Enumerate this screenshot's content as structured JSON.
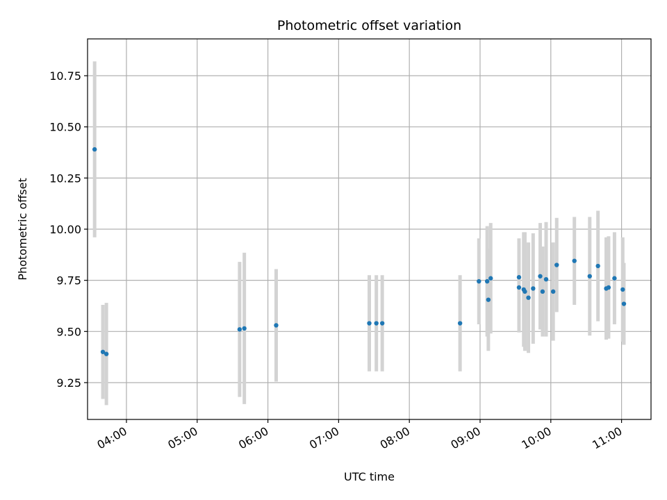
{
  "chart_data": {
    "type": "scatter",
    "title": "Photometric offset variation",
    "xlabel": "UTC time",
    "ylabel": "Photometric offset",
    "grid": true,
    "xlim": [
      "03:27",
      "11:25"
    ],
    "ylim": [
      9.07,
      10.93
    ],
    "x_ticks": [
      "04:00",
      "05:00",
      "06:00",
      "07:00",
      "08:00",
      "09:00",
      "10:00",
      "11:00"
    ],
    "y_ticks": [
      "9.25",
      "9.50",
      "9.75",
      "10.00",
      "10.25",
      "10.50",
      "10.75"
    ],
    "colors": {
      "point": "#1f77b4",
      "errorbar": "#d3d3d3",
      "grid": "#b0b0b0"
    },
    "series": [
      {
        "x": [
          "03:33",
          "03:40",
          "03:43",
          "05:36",
          "05:40",
          "06:07",
          "07:26",
          "07:32",
          "07:37",
          "08:43",
          "08:59",
          "09:06",
          "09:07",
          "09:09",
          "09:33",
          "09:33",
          "09:37",
          "09:38",
          "09:41",
          "09:45",
          "09:51",
          "09:53",
          "09:56",
          "10:02",
          "10:05",
          "10:20",
          "10:33",
          "10:40",
          "10:47",
          "10:49",
          "10:54",
          "11:01",
          "11:02"
        ],
        "y": [
          10.39,
          9.4,
          9.39,
          9.51,
          9.515,
          9.53,
          9.54,
          9.54,
          9.54,
          9.54,
          9.745,
          9.745,
          9.655,
          9.76,
          9.765,
          9.715,
          9.705,
          9.695,
          9.665,
          9.71,
          9.77,
          9.695,
          9.755,
          9.695,
          9.825,
          9.845,
          9.77,
          9.82,
          9.71,
          9.715,
          9.76,
          9.705,
          9.635
        ],
        "error": [
          0.43,
          0.23,
          0.25,
          0.33,
          0.37,
          0.275,
          0.235,
          0.235,
          0.235,
          0.235,
          0.21,
          0.27,
          0.25,
          0.27,
          0.19,
          0.22,
          0.28,
          0.29,
          0.27,
          0.27,
          0.26,
          0.22,
          0.28,
          0.24,
          0.23,
          0.215,
          0.29,
          0.27,
          0.25,
          0.25,
          0.225,
          0.255,
          0.2
        ]
      }
    ]
  }
}
